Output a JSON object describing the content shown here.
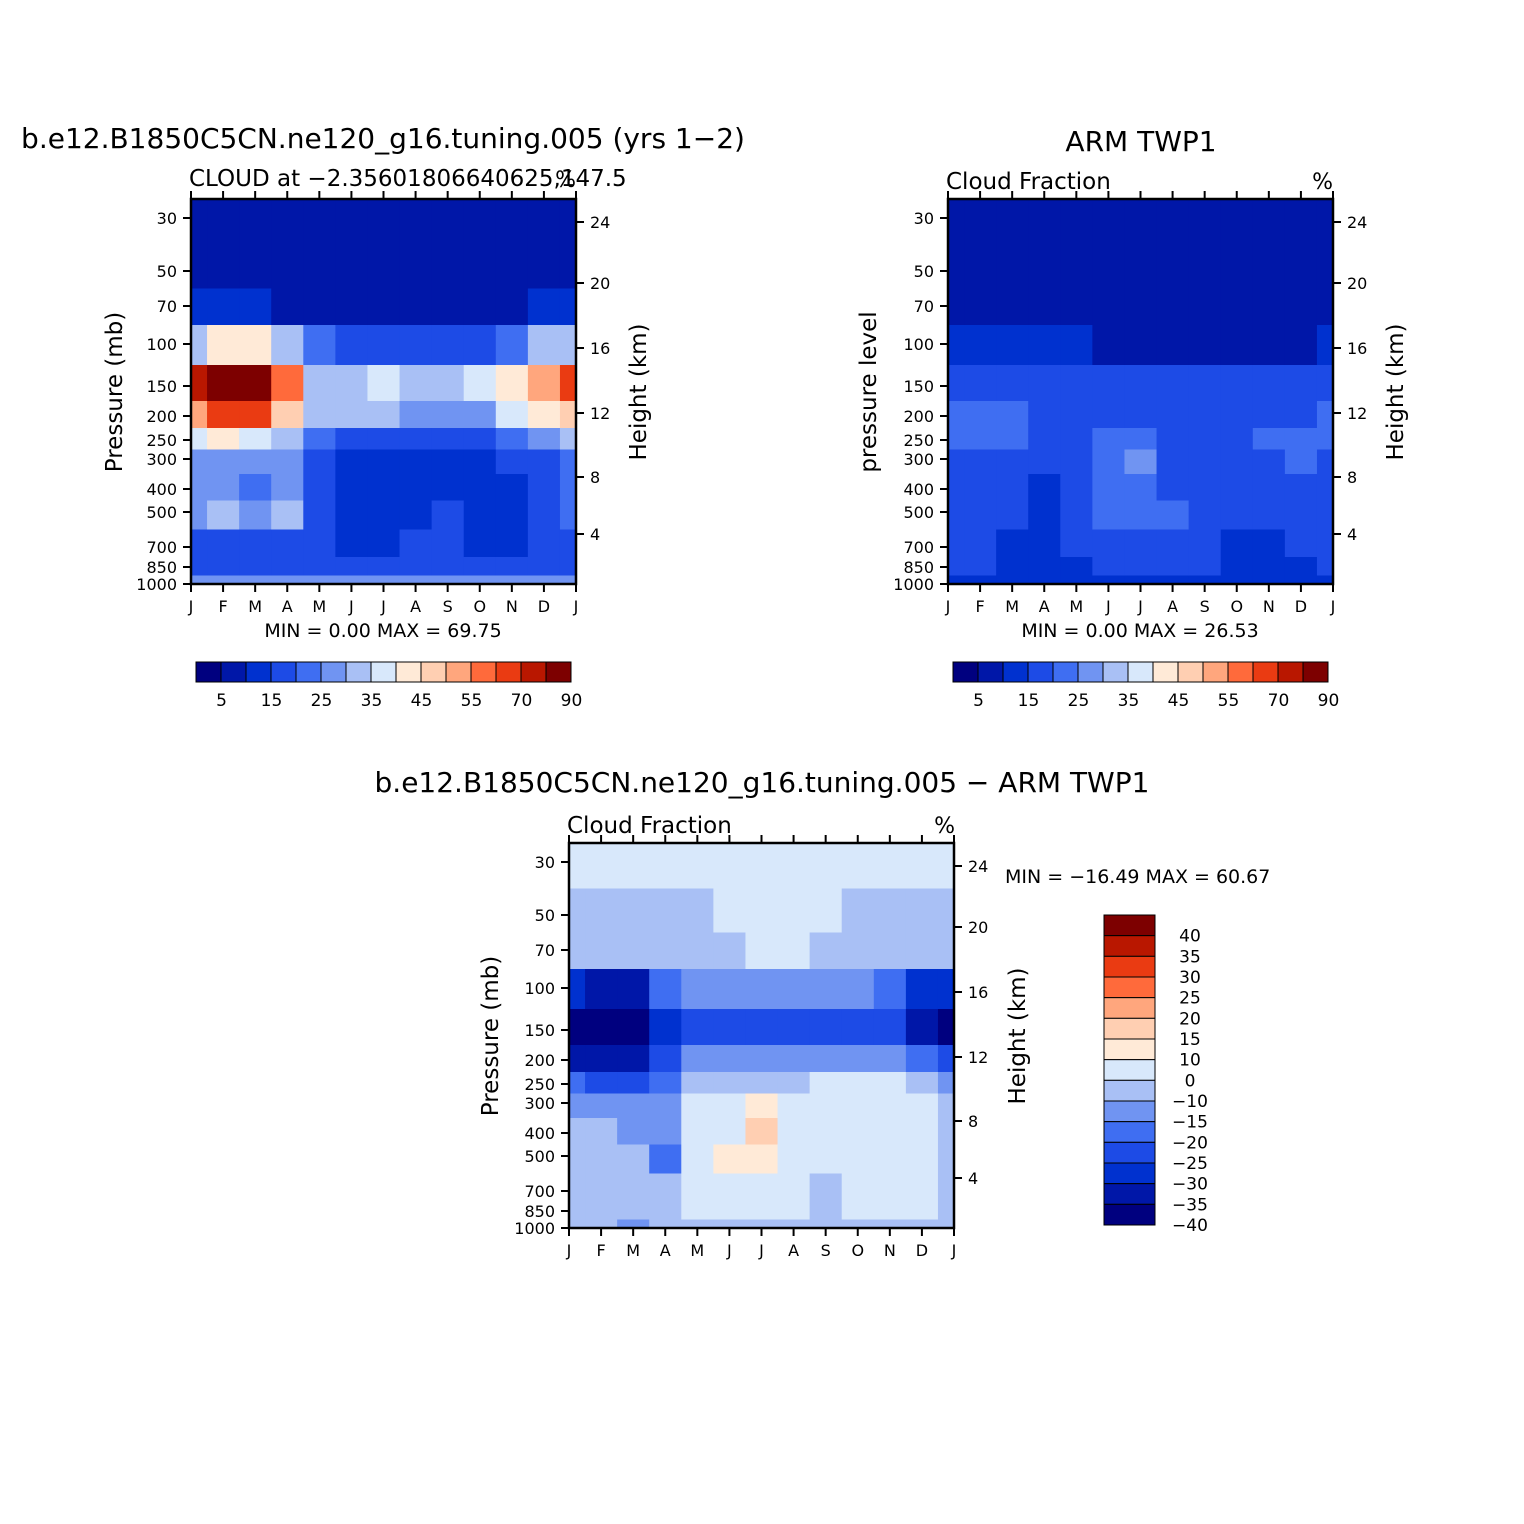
{
  "colors": {
    "scale": [
      "#00007f",
      "#0017a8",
      "#0031cf",
      "#1d4be6",
      "#3f6ef2",
      "#7094f2",
      "#a9c0f5",
      "#d8e8fb",
      "#ffead7",
      "#ffcfb2",
      "#ffa67d",
      "#ff6a3b",
      "#ea3b12",
      "#b91700",
      "#7d0000"
    ],
    "diff_scale": [
      "#00007f",
      "#0017a8",
      "#0031cf",
      "#1d4be6",
      "#3f6ef2",
      "#7094f2",
      "#a9c0f5",
      "#d8e8fb",
      "#ffead7",
      "#ffcfb2",
      "#ffa67d",
      "#ff6a3b",
      "#ea3b12",
      "#b91700",
      "#7d0000"
    ]
  },
  "chart_data": [
    {
      "type": "heatmap",
      "panel": "model",
      "title": "b.e12.B1850C5CN.ne120_g16.tuning.005 (yrs 1−2)",
      "subtitle_left": "CLOUD at −2.35601806640625,147.5",
      "subtitle_right": "%",
      "ylabel": "Pressure (mb)",
      "ylabel_right": "Height (km)",
      "x_ticks": [
        "J",
        "F",
        "M",
        "A",
        "M",
        "J",
        "J",
        "A",
        "S",
        "O",
        "N",
        "D",
        "J"
      ],
      "y_ticks": [
        30,
        50,
        70,
        100,
        150,
        200,
        250,
        300,
        400,
        500,
        700,
        850,
        1000
      ],
      "y_ticks_right": [
        24,
        20,
        16,
        12,
        8,
        4
      ],
      "stats": "MIN =    0.00  MAX =   69.75",
      "min": 0.0,
      "max": 69.75,
      "colorbar_labels": [
        "5",
        "15",
        "25",
        "35",
        "45",
        "55",
        "70",
        "90"
      ],
      "rows_by_level": [
        [
          1,
          1,
          1,
          1,
          1,
          1,
          1,
          1,
          1,
          1,
          1,
          1,
          1
        ],
        [
          1,
          1,
          1,
          1,
          1,
          1,
          1,
          1,
          1,
          1,
          1,
          1,
          1
        ],
        [
          2,
          2,
          2,
          1,
          1,
          1,
          1,
          1,
          1,
          1,
          1,
          2,
          2
        ],
        [
          6,
          8,
          8,
          6,
          4,
          3,
          3,
          3,
          3,
          3,
          4,
          6,
          6
        ],
        [
          13,
          14,
          14,
          11,
          6,
          6,
          7,
          6,
          6,
          7,
          8,
          10,
          12
        ],
        [
          10,
          12,
          12,
          9,
          6,
          6,
          6,
          5,
          5,
          5,
          7,
          8,
          9
        ],
        [
          7,
          8,
          7,
          6,
          4,
          3,
          3,
          3,
          3,
          3,
          4,
          5,
          6
        ],
        [
          5,
          5,
          5,
          5,
          3,
          2,
          2,
          2,
          2,
          2,
          3,
          3,
          4
        ],
        [
          5,
          5,
          4,
          5,
          3,
          2,
          2,
          2,
          2,
          2,
          2,
          3,
          4
        ],
        [
          5,
          6,
          5,
          6,
          3,
          2,
          2,
          2,
          3,
          2,
          2,
          3,
          4
        ],
        [
          3,
          3,
          3,
          3,
          3,
          2,
          2,
          3,
          3,
          2,
          2,
          3,
          3
        ],
        [
          3,
          3,
          3,
          3,
          3,
          3,
          3,
          3,
          3,
          3,
          3,
          3,
          3
        ],
        [
          5,
          5,
          5,
          5,
          5,
          5,
          5,
          5,
          5,
          5,
          5,
          5,
          5
        ]
      ]
    },
    {
      "type": "heatmap",
      "panel": "obs",
      "title": "ARM TWP1",
      "subtitle_left": "Cloud Fraction",
      "subtitle_right": "%",
      "ylabel": "pressure level",
      "ylabel_right": "Height (km)",
      "x_ticks": [
        "J",
        "F",
        "M",
        "A",
        "M",
        "J",
        "J",
        "A",
        "S",
        "O",
        "N",
        "D",
        "J"
      ],
      "y_ticks": [
        30,
        50,
        70,
        100,
        150,
        200,
        250,
        300,
        400,
        500,
        700,
        850,
        1000
      ],
      "y_ticks_right": [
        24,
        20,
        16,
        12,
        8,
        4
      ],
      "stats": "MIN =    0.00  MAX =   26.53",
      "min": 0.0,
      "max": 26.53,
      "colorbar_labels": [
        "5",
        "15",
        "25",
        "35",
        "45",
        "55",
        "70",
        "90"
      ],
      "rows_by_level": [
        [
          1,
          1,
          1,
          1,
          1,
          1,
          1,
          1,
          1,
          1,
          1,
          1,
          1
        ],
        [
          1,
          1,
          1,
          1,
          1,
          1,
          1,
          1,
          1,
          1,
          1,
          1,
          1
        ],
        [
          1,
          1,
          1,
          1,
          1,
          1,
          1,
          1,
          1,
          1,
          1,
          1,
          1
        ],
        [
          2,
          2,
          2,
          2,
          2,
          1,
          1,
          1,
          1,
          1,
          1,
          1,
          2
        ],
        [
          3,
          3,
          3,
          3,
          3,
          3,
          3,
          3,
          3,
          3,
          3,
          3,
          3
        ],
        [
          4,
          4,
          4,
          3,
          3,
          3,
          3,
          3,
          3,
          3,
          3,
          3,
          4
        ],
        [
          4,
          4,
          4,
          3,
          3,
          4,
          4,
          3,
          3,
          3,
          4,
          4,
          4
        ],
        [
          3,
          3,
          3,
          3,
          3,
          4,
          5,
          3,
          3,
          3,
          3,
          4,
          3
        ],
        [
          3,
          3,
          3,
          2,
          3,
          4,
          4,
          3,
          3,
          3,
          3,
          3,
          3
        ],
        [
          3,
          3,
          3,
          2,
          3,
          4,
          4,
          4,
          3,
          3,
          3,
          3,
          3
        ],
        [
          3,
          3,
          2,
          2,
          3,
          3,
          3,
          3,
          3,
          2,
          2,
          3,
          3
        ],
        [
          3,
          3,
          2,
          2,
          2,
          3,
          3,
          3,
          3,
          2,
          2,
          2,
          3
        ],
        [
          2,
          2,
          2,
          2,
          2,
          2,
          2,
          2,
          2,
          2,
          2,
          2,
          2
        ]
      ]
    },
    {
      "type": "heatmap",
      "panel": "diff",
      "title": "b.e12.B1850C5CN.ne120_g16.tuning.005 − ARM TWP1",
      "subtitle_left": "Cloud Fraction",
      "subtitle_right": "%",
      "ylabel": "Pressure (mb)",
      "ylabel_right": "Height (km)",
      "x_ticks": [
        "J",
        "F",
        "M",
        "A",
        "M",
        "J",
        "J",
        "A",
        "S",
        "O",
        "N",
        "D",
        "J"
      ],
      "y_ticks": [
        30,
        50,
        70,
        100,
        150,
        200,
        250,
        300,
        400,
        500,
        700,
        850,
        1000
      ],
      "y_ticks_right": [
        24,
        20,
        16,
        12,
        8,
        4
      ],
      "stats": "MIN = −16.49  MAX =   60.67",
      "min": -16.49,
      "max": 60.67,
      "colorbar_labels": [
        "40",
        "35",
        "30",
        "25",
        "20",
        "15",
        "10",
        "0",
        "−10",
        "−15",
        "−20",
        "−25",
        "−30",
        "−35",
        "−40"
      ],
      "rows_by_level": [
        [
          7,
          7,
          7,
          7,
          7,
          7,
          7,
          7,
          7,
          7,
          7,
          7,
          7
        ],
        [
          8,
          8,
          8,
          8,
          8,
          7,
          7,
          7,
          7,
          8,
          8,
          8,
          8
        ],
        [
          8,
          8,
          8,
          8,
          8,
          8,
          7,
          7,
          8,
          8,
          8,
          8,
          8
        ],
        [
          12,
          13,
          13,
          10,
          9,
          9,
          9,
          9,
          9,
          9,
          10,
          12,
          12
        ],
        [
          14,
          14,
          14,
          12,
          11,
          11,
          11,
          11,
          11,
          11,
          11,
          13,
          14
        ],
        [
          13,
          13,
          13,
          11,
          9,
          9,
          9,
          9,
          9,
          9,
          9,
          10,
          11
        ],
        [
          10,
          11,
          11,
          10,
          8,
          8,
          8,
          8,
          7,
          7,
          7,
          8,
          9
        ],
        [
          9,
          9,
          9,
          9,
          7,
          7,
          6,
          7,
          7,
          7,
          7,
          7,
          8
        ],
        [
          8,
          8,
          9,
          9,
          7,
          7,
          5,
          7,
          7,
          7,
          7,
          7,
          8
        ],
        [
          8,
          8,
          8,
          10,
          7,
          6,
          6,
          7,
          7,
          7,
          7,
          7,
          8
        ],
        [
          8,
          8,
          8,
          8,
          7,
          7,
          7,
          7,
          8,
          7,
          7,
          7,
          8
        ],
        [
          8,
          8,
          8,
          8,
          7,
          7,
          7,
          7,
          8,
          7,
          7,
          7,
          8
        ],
        [
          8,
          8,
          9,
          8,
          8,
          8,
          8,
          8,
          8,
          8,
          8,
          8,
          8
        ]
      ]
    }
  ]
}
